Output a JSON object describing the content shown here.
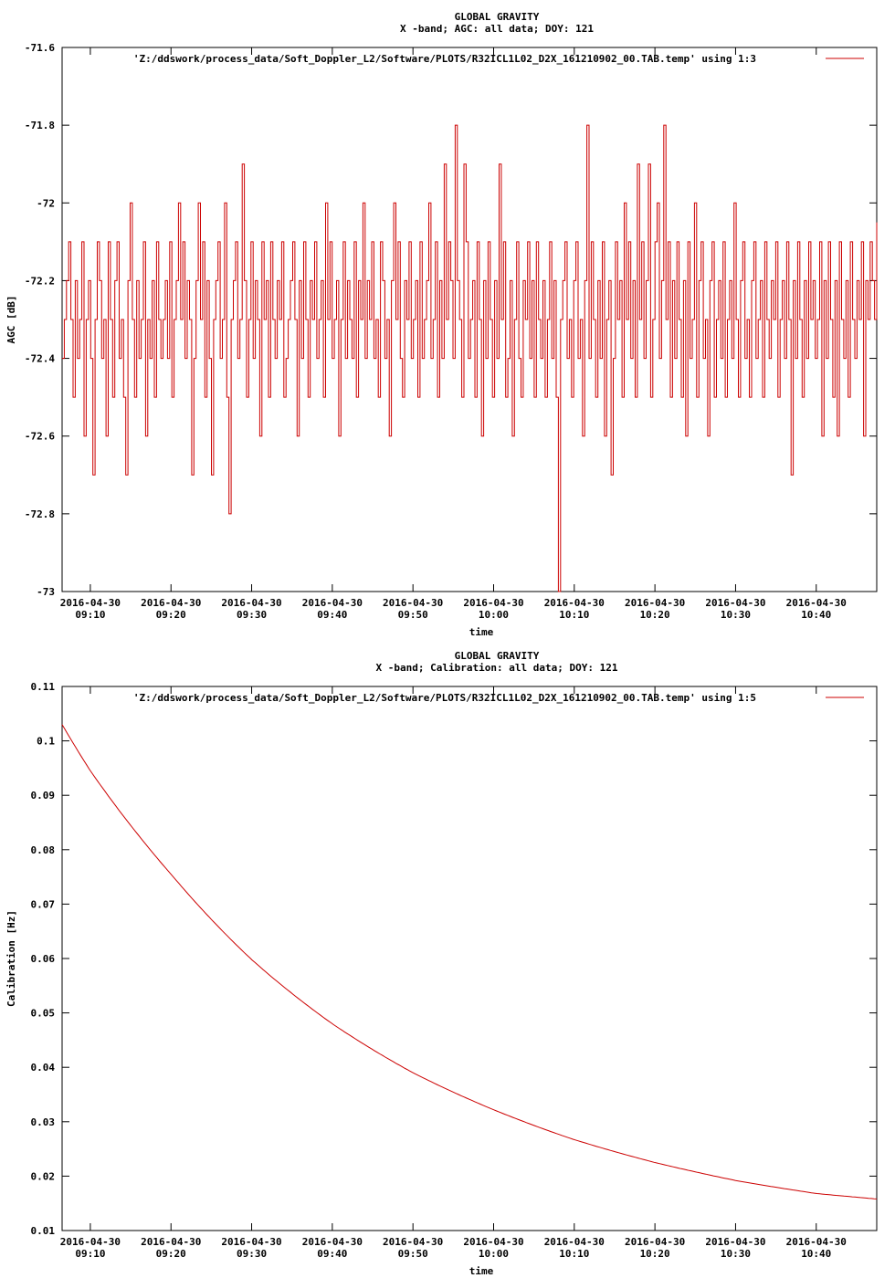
{
  "chart_data": [
    {
      "type": "line",
      "title": "GLOBAL GRAVITY",
      "subtitle": "X -band; AGC: all data; DOY: 121",
      "xlabel": "time",
      "ylabel": "AGC [dB]",
      "ylim": [
        -73,
        -71.6
      ],
      "y_ticks": [
        "-71.6",
        "-71.8",
        "-72",
        "-72.2",
        "-72.4",
        "-72.6",
        "-72.8",
        "-73"
      ],
      "y_tick_values": [
        -71.6,
        -71.8,
        -72,
        -72.2,
        -72.4,
        -72.6,
        -72.8,
        -73
      ],
      "x_tick_labels": [
        [
          "2016-04-30",
          "09:10"
        ],
        [
          "2016-04-30",
          "09:20"
        ],
        [
          "2016-04-30",
          "09:30"
        ],
        [
          "2016-04-30",
          "09:40"
        ],
        [
          "2016-04-30",
          "09:50"
        ],
        [
          "2016-04-30",
          "10:00"
        ],
        [
          "2016-04-30",
          "10:10"
        ],
        [
          "2016-04-30",
          "10:20"
        ],
        [
          "2016-04-30",
          "10:30"
        ],
        [
          "2016-04-30",
          "10:40"
        ]
      ],
      "x_tick_times": [
        "09:10",
        "09:20",
        "09:30",
        "09:40",
        "09:50",
        "10:00",
        "10:10",
        "10:20",
        "10:30",
        "10:40"
      ],
      "xlim": [
        "09:06:30",
        "10:47:30"
      ],
      "grid": false,
      "legend_position": "top-right",
      "series": [
        {
          "name": "'Z:/ddswork/process_data/Soft_Doppler_L2/Software/PLOTS/R32ICL1L02_D2X_161210902_00.TAB.temp' using 1:3",
          "color": "#cc0000",
          "x_start": "09:06:30",
          "x_end": "10:47:30",
          "values": [
            -72.4,
            -72.3,
            -72.2,
            -72.1,
            -72.3,
            -72.5,
            -72.2,
            -72.4,
            -72.3,
            -72.1,
            -72.6,
            -72.3,
            -72.2,
            -72.4,
            -72.7,
            -72.3,
            -72.1,
            -72.2,
            -72.4,
            -72.3,
            -72.6,
            -72.1,
            -72.3,
            -72.5,
            -72.2,
            -72.1,
            -72.4,
            -72.3,
            -72.5,
            -72.7,
            -72.2,
            -72.0,
            -72.3,
            -72.5,
            -72.2,
            -72.4,
            -72.3,
            -72.1,
            -72.6,
            -72.3,
            -72.4,
            -72.2,
            -72.5,
            -72.1,
            -72.3,
            -72.4,
            -72.3,
            -72.2,
            -72.4,
            -72.1,
            -72.5,
            -72.3,
            -72.2,
            -72.0,
            -72.3,
            -72.1,
            -72.4,
            -72.2,
            -72.3,
            -72.7,
            -72.4,
            -72.2,
            -72.0,
            -72.3,
            -72.1,
            -72.5,
            -72.2,
            -72.4,
            -72.7,
            -72.3,
            -72.2,
            -72.1,
            -72.4,
            -72.3,
            -72.0,
            -72.5,
            -72.8,
            -72.3,
            -72.2,
            -72.1,
            -72.4,
            -72.3,
            -71.9,
            -72.2,
            -72.5,
            -72.3,
            -72.1,
            -72.4,
            -72.2,
            -72.3,
            -72.6,
            -72.1,
            -72.3,
            -72.2,
            -72.5,
            -72.1,
            -72.3,
            -72.4,
            -72.2,
            -72.3,
            -72.1,
            -72.5,
            -72.4,
            -72.3,
            -72.2,
            -72.1,
            -72.3,
            -72.6,
            -72.2,
            -72.4,
            -72.1,
            -72.3,
            -72.5,
            -72.2,
            -72.3,
            -72.1,
            -72.4,
            -72.3,
            -72.2,
            -72.5,
            -72.0,
            -72.3,
            -72.1,
            -72.4,
            -72.3,
            -72.2,
            -72.6,
            -72.3,
            -72.1,
            -72.4,
            -72.2,
            -72.3,
            -72.4,
            -72.1,
            -72.5,
            -72.2,
            -72.3,
            -72.0,
            -72.4,
            -72.2,
            -72.3,
            -72.1,
            -72.4,
            -72.3,
            -72.5,
            -72.1,
            -72.2,
            -72.4,
            -72.3,
            -72.6,
            -72.2,
            -72.0,
            -72.3,
            -72.1,
            -72.4,
            -72.5,
            -72.2,
            -72.3,
            -72.1,
            -72.4,
            -72.3,
            -72.2,
            -72.5,
            -72.1,
            -72.4,
            -72.3,
            -72.2,
            -72.0,
            -72.4,
            -72.3,
            -72.1,
            -72.5,
            -72.2,
            -72.4,
            -71.9,
            -72.3,
            -72.1,
            -72.2,
            -72.4,
            -71.8,
            -72.2,
            -72.3,
            -72.5,
            -71.9,
            -72.1,
            -72.4,
            -72.3,
            -72.2,
            -72.5,
            -72.1,
            -72.3,
            -72.6,
            -72.2,
            -72.4,
            -72.1,
            -72.3,
            -72.5,
            -72.2,
            -72.4,
            -71.9,
            -72.3,
            -72.1,
            -72.5,
            -72.4,
            -72.2,
            -72.6,
            -72.3,
            -72.1,
            -72.4,
            -72.5,
            -72.2,
            -72.3,
            -72.1,
            -72.4,
            -72.2,
            -72.5,
            -72.1,
            -72.3,
            -72.4,
            -72.2,
            -72.5,
            -72.3,
            -72.1,
            -72.4,
            -72.2,
            -72.5,
            -73.0,
            -72.3,
            -72.2,
            -72.1,
            -72.4,
            -72.3,
            -72.5,
            -72.2,
            -72.1,
            -72.4,
            -72.3,
            -72.6,
            -72.2,
            -71.8,
            -72.4,
            -72.1,
            -72.3,
            -72.5,
            -72.2,
            -72.4,
            -72.1,
            -72.6,
            -72.3,
            -72.2,
            -72.7,
            -72.4,
            -72.1,
            -72.3,
            -72.2,
            -72.5,
            -72.0,
            -72.3,
            -72.1,
            -72.4,
            -72.2,
            -72.5,
            -71.9,
            -72.3,
            -72.1,
            -72.4,
            -72.2,
            -71.9,
            -72.5,
            -72.3,
            -72.1,
            -72.0,
            -72.4,
            -72.2,
            -71.8,
            -72.3,
            -72.1,
            -72.5,
            -72.2,
            -72.4,
            -72.1,
            -72.3,
            -72.5,
            -72.2,
            -72.6,
            -72.1,
            -72.4,
            -72.3,
            -72.0,
            -72.5,
            -72.2,
            -72.1,
            -72.4,
            -72.3,
            -72.6,
            -72.2,
            -72.1,
            -72.5,
            -72.3,
            -72.2,
            -72.4,
            -72.1,
            -72.5,
            -72.3,
            -72.2,
            -72.4,
            -72.0,
            -72.3,
            -72.5,
            -72.2,
            -72.1,
            -72.4,
            -72.3,
            -72.5,
            -72.2,
            -72.1,
            -72.4,
            -72.3,
            -72.2,
            -72.5,
            -72.1,
            -72.3,
            -72.4,
            -72.2,
            -72.3,
            -72.1,
            -72.5,
            -72.3,
            -72.2,
            -72.4,
            -72.1,
            -72.3,
            -72.7,
            -72.2,
            -72.4,
            -72.1,
            -72.3,
            -72.5,
            -72.2,
            -72.4,
            -72.1,
            -72.3,
            -72.2,
            -72.4,
            -72.3,
            -72.1,
            -72.6,
            -72.2,
            -72.4,
            -72.1,
            -72.3,
            -72.5,
            -72.2,
            -72.6,
            -72.1,
            -72.3,
            -72.4,
            -72.2,
            -72.5,
            -72.1,
            -72.3,
            -72.4,
            -72.2,
            -72.3,
            -72.1,
            -72.6,
            -72.2,
            -72.3,
            -72.1,
            -72.2,
            -72.3,
            -72.05
          ]
        }
      ]
    },
    {
      "type": "line",
      "title": "GLOBAL GRAVITY",
      "subtitle": "X -band; Calibration: all data; DOY: 121",
      "xlabel": "time",
      "ylabel": "Calibration [Hz]",
      "ylim": [
        0.01,
        0.11
      ],
      "y_ticks": [
        "0.11",
        "0.1",
        "0.09",
        "0.08",
        "0.07",
        "0.06",
        "0.05",
        "0.04",
        "0.03",
        "0.02",
        "0.01"
      ],
      "y_tick_values": [
        0.11,
        0.1,
        0.09,
        0.08,
        0.07,
        0.06,
        0.05,
        0.04,
        0.03,
        0.02,
        0.01
      ],
      "x_tick_labels": [
        [
          "2016-04-30",
          "09:10"
        ],
        [
          "2016-04-30",
          "09:20"
        ],
        [
          "2016-04-30",
          "09:30"
        ],
        [
          "2016-04-30",
          "09:40"
        ],
        [
          "2016-04-30",
          "09:50"
        ],
        [
          "2016-04-30",
          "10:00"
        ],
        [
          "2016-04-30",
          "10:10"
        ],
        [
          "2016-04-30",
          "10:20"
        ],
        [
          "2016-04-30",
          "10:30"
        ],
        [
          "2016-04-30",
          "10:40"
        ]
      ],
      "x_tick_times": [
        "09:10",
        "09:20",
        "09:30",
        "09:40",
        "09:50",
        "10:00",
        "10:10",
        "10:20",
        "10:30",
        "10:40"
      ],
      "xlim": [
        "09:06:30",
        "10:47:30"
      ],
      "grid": false,
      "legend_position": "top-right",
      "series": [
        {
          "name": "'Z:/ddswork/process_data/Soft_Doppler_L2/Software/PLOTS/R32ICL1L02_D2X_161210902_00.TAB.temp' using 1:5",
          "color": "#cc0000",
          "x": [
            "09:06:30",
            "09:10",
            "09:20",
            "09:30",
            "09:40",
            "09:50",
            "10:00",
            "10:10",
            "10:20",
            "10:30",
            "10:40",
            "10:47:30"
          ],
          "values": [
            0.103,
            0.0945,
            0.0755,
            0.0598,
            0.048,
            0.039,
            0.0322,
            0.0267,
            0.0225,
            0.0192,
            0.0168,
            0.0158
          ]
        }
      ]
    }
  ]
}
